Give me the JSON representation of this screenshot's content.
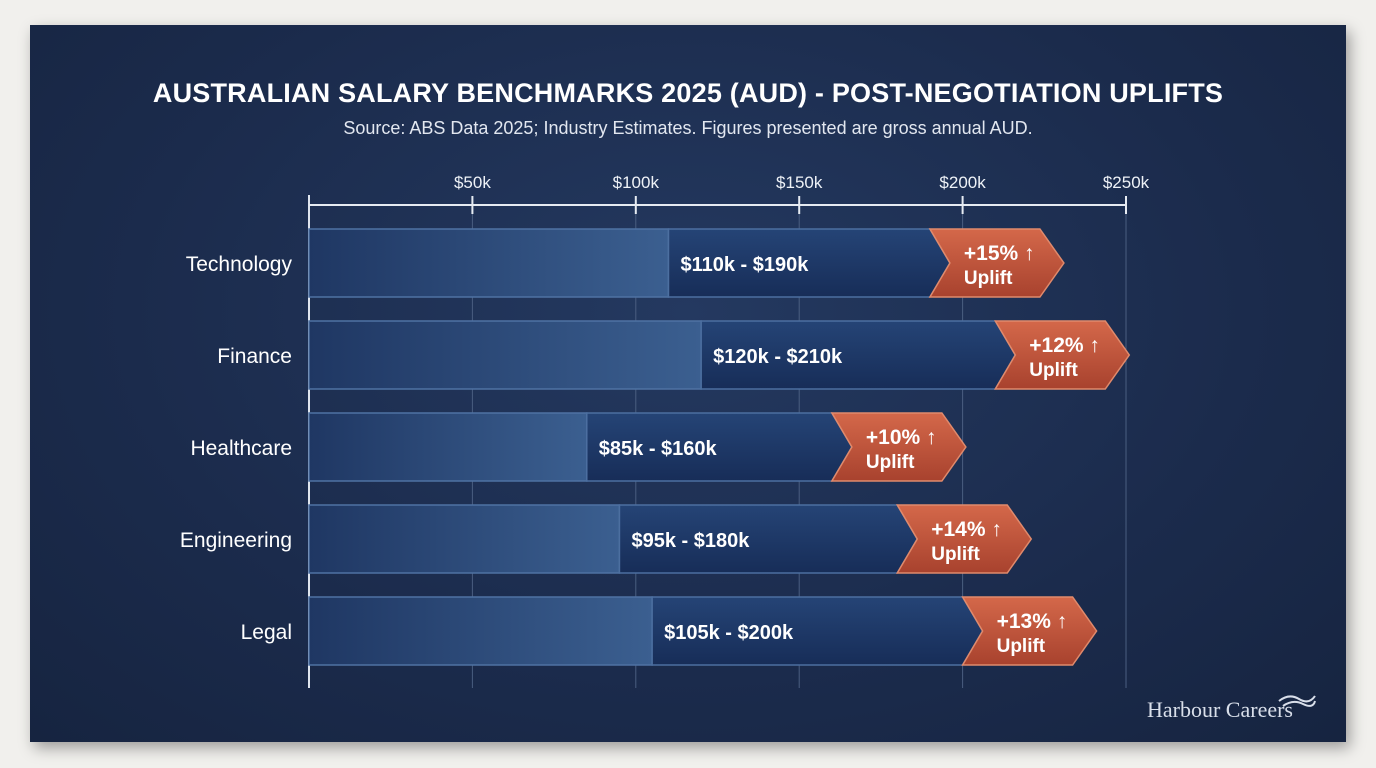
{
  "chart_data": {
    "type": "bar",
    "orientation": "horizontal",
    "title": "AUSTRALIAN SALARY BENCHMARKS 2025 (AUD) - POST-NEGOTIATION UPLIFTS",
    "subtitle": "Source: ABS Data 2025; Industry Estimates. Figures presented are gross annual AUD.",
    "xlim": [
      0,
      250000
    ],
    "x_ticks": [
      50000,
      100000,
      150000,
      200000,
      250000
    ],
    "x_tick_labels": [
      "$50k",
      "$100k",
      "$150k",
      "$200k",
      "$250k"
    ],
    "grid": true,
    "categories": [
      "Technology",
      "Finance",
      "Healthcare",
      "Engineering",
      "Legal"
    ],
    "ranges": [
      {
        "min": 110000,
        "max": 190000,
        "label": "$110k - $190k",
        "uplift": "+15%",
        "uplift_label": "Uplift"
      },
      {
        "min": 120000,
        "max": 210000,
        "label": "$120k - $210k",
        "uplift": "+12%",
        "uplift_label": "Uplift"
      },
      {
        "min": 85000,
        "max": 160000,
        "label": "$85k - $160k",
        "uplift": "+10%",
        "uplift_label": "Uplift"
      },
      {
        "min": 95000,
        "max": 180000,
        "label": "$95k - $180k",
        "uplift": "+14%",
        "uplift_label": "Uplift"
      },
      {
        "min": 105000,
        "max": 200000,
        "label": "$105k - $200k",
        "uplift": "+13%",
        "uplift_label": "Uplift"
      }
    ],
    "colors": {
      "base": "#2f4f80",
      "range": "#1d3766",
      "uplift": "#c2553b",
      "panel": "#1b2b4c"
    }
  },
  "brand": {
    "name": "Harbour Careers"
  }
}
